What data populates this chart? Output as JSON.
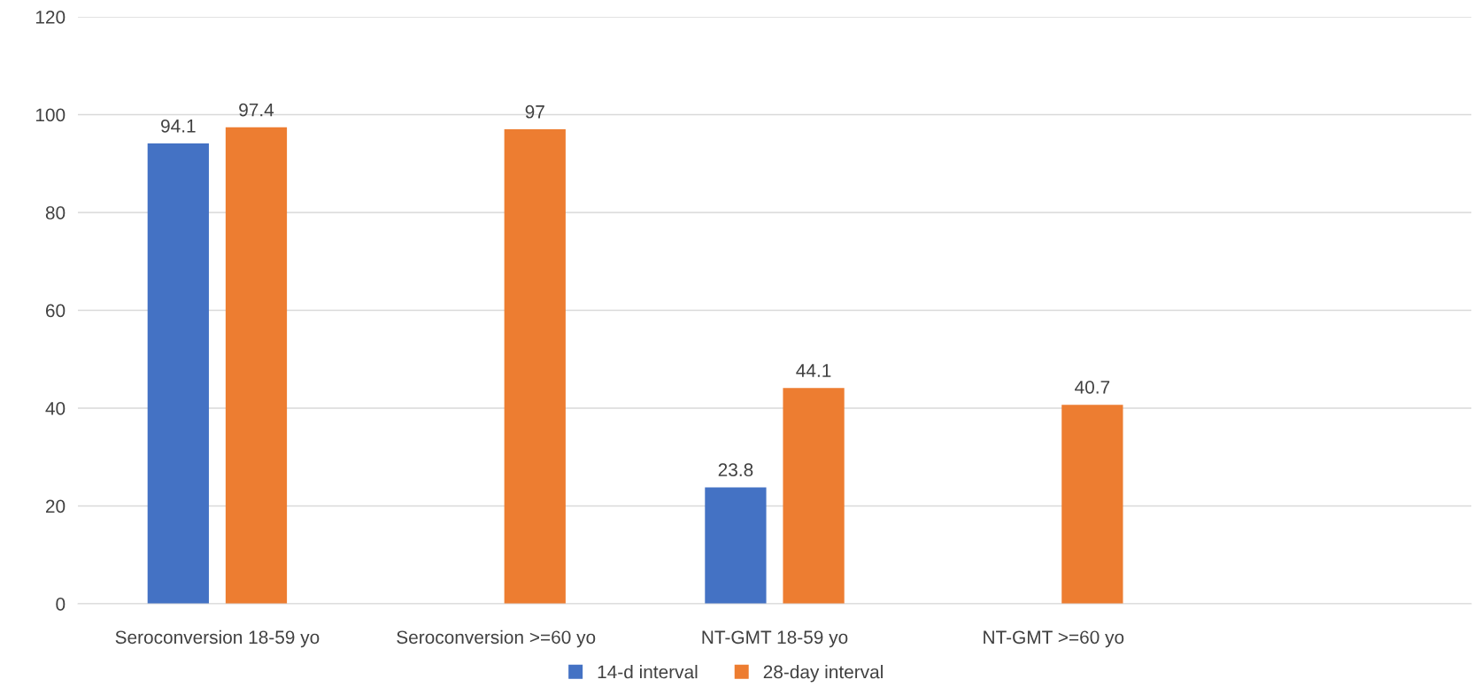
{
  "chart_data": {
    "type": "bar",
    "categories": [
      "Seroconversion 18-59 yo",
      "Seroconversion >=60 yo",
      "NT-GMT 18-59 yo",
      "NT-GMT >=60 yo",
      null
    ],
    "series": [
      {
        "name": "14-d interval",
        "color": "#4472c4",
        "values": [
          94.1,
          null,
          23.8,
          null,
          null
        ]
      },
      {
        "name": "28-day interval",
        "color": "#ed7d31",
        "values": [
          97.4,
          97,
          44.1,
          40.7,
          null
        ]
      }
    ],
    "ylim": [
      0,
      120
    ],
    "yticks": [
      0,
      20,
      40,
      60,
      80,
      100,
      120
    ],
    "grid": "y",
    "legend": "bottom",
    "data_labels": true
  }
}
